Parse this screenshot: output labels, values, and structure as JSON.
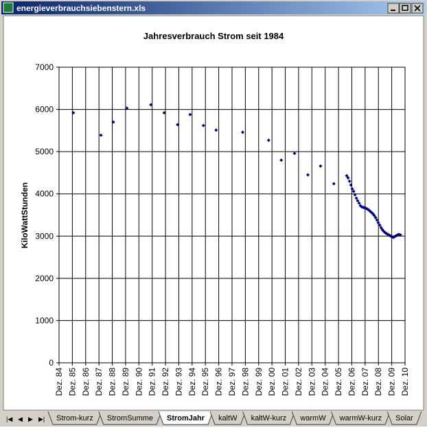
{
  "window": {
    "title": "energieverbrauchsiebenstern.xls"
  },
  "tabs": [
    "Strom-kurz",
    "StromSumme",
    "StromJahr",
    "kaltW",
    "kaltW-kurz",
    "warmW",
    "warmW-kurz",
    "Solar"
  ],
  "active_tab": 2,
  "chart_data": {
    "type": "scatter",
    "title": "Jahresverbrauch Strom seit 1984",
    "y_label": "KiloWattStunden",
    "color": "#000080",
    "grid": true,
    "xlim": [
      1984,
      2010
    ],
    "ylim": [
      0,
      7000
    ],
    "yticks": [
      0,
      1000,
      2000,
      3000,
      4000,
      5000,
      6000,
      7000
    ],
    "xticks": [
      {
        "value": 1984,
        "label": "Dez. 84"
      },
      {
        "value": 1985,
        "label": "Dez. 85"
      },
      {
        "value": 1986,
        "label": "Dez. 86"
      },
      {
        "value": 1987,
        "label": "Dez. 87"
      },
      {
        "value": 1988,
        "label": "Dez. 88"
      },
      {
        "value": 1989,
        "label": "Dez. 89"
      },
      {
        "value": 1990,
        "label": "Dez. 90"
      },
      {
        "value": 1991,
        "label": "Dez. 91"
      },
      {
        "value": 1992,
        "label": "Dez. 92"
      },
      {
        "value": 1993,
        "label": "Dez. 93"
      },
      {
        "value": 1994,
        "label": "Dez. 94"
      },
      {
        "value": 1995,
        "label": "Dez. 95"
      },
      {
        "value": 1996,
        "label": "Dez. 96"
      },
      {
        "value": 1997,
        "label": "Dez. 97"
      },
      {
        "value": 1998,
        "label": "Dez. 98"
      },
      {
        "value": 1999,
        "label": "Dez. 99"
      },
      {
        "value": 2000,
        "label": "Dez. 00"
      },
      {
        "value": 2001,
        "label": "Dez. 01"
      },
      {
        "value": 2002,
        "label": "Dez. 02"
      },
      {
        "value": 2003,
        "label": "Dez. 03"
      },
      {
        "value": 2004,
        "label": "Dez. 04"
      },
      {
        "value": 2005,
        "label": "Dez. 05"
      },
      {
        "value": 2006,
        "label": "Dez. 06"
      },
      {
        "value": 2007,
        "label": "Dez. 07"
      },
      {
        "value": 2008,
        "label": "Dez. 08"
      },
      {
        "value": 2009,
        "label": "Dez. 09"
      },
      {
        "value": 2010,
        "label": "Dez. 10"
      }
    ],
    "x": [
      1985.08,
      1987.15,
      1988.08,
      1989.1,
      1990.9,
      1991.9,
      1992.9,
      1993.85,
      1994.85,
      1995.8,
      1997.8,
      1999.75,
      2000.7,
      2001.7,
      2002.7,
      2003.65,
      2004.65,
      2005.62,
      2005.72,
      2005.83,
      2005.93,
      2006.03,
      2006.14,
      2006.24,
      2006.34,
      2006.44,
      2006.55,
      2006.65,
      2006.75,
      2006.86,
      2006.96,
      2007.06,
      2007.17,
      2007.27,
      2007.37,
      2007.48,
      2007.58,
      2007.68,
      2007.79,
      2007.89,
      2007.99,
      2008.1,
      2008.2,
      2008.3,
      2008.41,
      2008.51,
      2008.61,
      2008.72,
      2008.82,
      2008.92,
      2009.03,
      2009.13,
      2009.23,
      2009.34,
      2009.44,
      2009.54,
      2009.65
    ],
    "values": [
      5920,
      5390,
      5700,
      6030,
      6110,
      5920,
      5640,
      5880,
      5620,
      5510,
      5460,
      5270,
      4800,
      4960,
      4450,
      4660,
      4240,
      4430,
      4380,
      4300,
      4210,
      4120,
      4060,
      3980,
      3900,
      3840,
      3780,
      3720,
      3690,
      3680,
      3670,
      3660,
      3640,
      3620,
      3590,
      3560,
      3530,
      3490,
      3440,
      3380,
      3320,
      3260,
      3200,
      3150,
      3110,
      3080,
      3060,
      3040,
      3020,
      3000,
      2980,
      2970,
      2990,
      3010,
      3030,
      3040,
      3030
    ]
  }
}
